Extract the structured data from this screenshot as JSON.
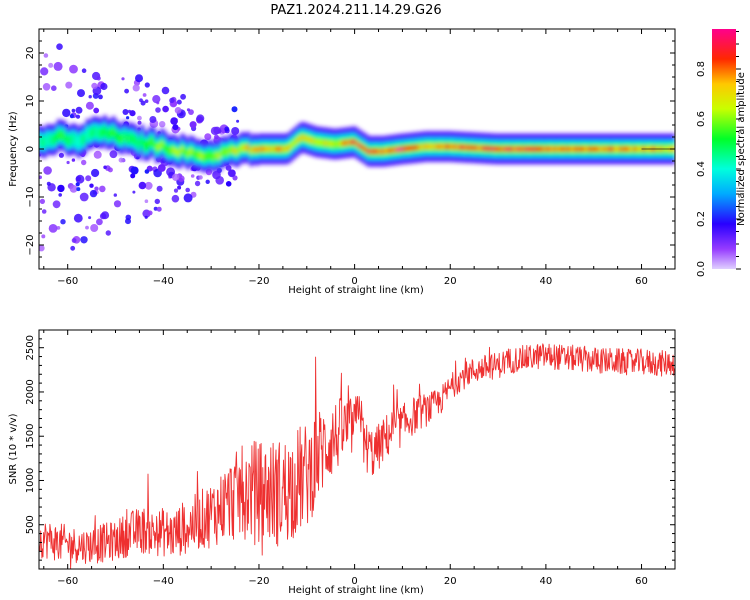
{
  "figure_title": "PAZ1.2024.211.14.29.G26",
  "chart_data": [
    {
      "type": "heatmap",
      "title": "",
      "xlabel": "Height of straight line (km)",
      "ylabel": "Frequency (Hz)",
      "xlim": [
        -66,
        67
      ],
      "ylim": [
        -25,
        25
      ],
      "xticks": [
        -60,
        -40,
        -20,
        0,
        20,
        40,
        60
      ],
      "yticks": [
        -20,
        -10,
        0,
        10,
        20
      ],
      "colorbar": {
        "label": "Normalized spectral amplitude",
        "range": [
          0.0,
          0.96
        ],
        "ticks": [
          0.0,
          0.2,
          0.4,
          0.6,
          0.8
        ],
        "colormap": "gist_rainbow (purple-blue-cyan-green-yellow-red-pink)"
      },
      "ridge": {
        "description": "frequency of maximum spectral amplitude versus height",
        "x": [
          -65,
          -62,
          -58,
          -54,
          -50,
          -46,
          -42,
          -38,
          -34,
          -30,
          -26,
          -22,
          -18,
          -14,
          -11,
          -8,
          -4,
          0,
          3,
          6,
          10,
          15,
          20,
          30,
          40,
          50,
          60,
          67
        ],
        "y": [
          1.5,
          2.5,
          1.5,
          3.5,
          3.0,
          1.5,
          1.0,
          0.0,
          -1.0,
          -1.5,
          -0.5,
          0.0,
          0.0,
          0.0,
          2.5,
          1.5,
          1.0,
          1.5,
          -0.5,
          -0.5,
          0.0,
          0.5,
          0.5,
          0.0,
          0.0,
          0.0,
          0.0,
          0.0
        ],
        "peak_amplitude": [
          0.45,
          0.55,
          0.45,
          0.5,
          0.55,
          0.5,
          0.6,
          0.65,
          0.65,
          0.6,
          0.7,
          0.75,
          0.8,
          0.75,
          0.7,
          0.75,
          0.7,
          0.9,
          0.95,
          0.85,
          0.95,
          0.8,
          0.85,
          0.9,
          0.85,
          0.85,
          0.8,
          0.75
        ]
      },
      "scatter_energy": {
        "description": "weak diffuse energy below about 40 km below-zero heights",
        "x_range": [
          -66,
          -24
        ],
        "y_range": [
          -24,
          24
        ],
        "amplitude": 0.15
      }
    },
    {
      "type": "line",
      "title": "",
      "xlabel": "Height of straight line (km)",
      "ylabel": "SNR (10 * v/v)",
      "xlim": [
        -66,
        67
      ],
      "ylim": [
        0,
        2700
      ],
      "xticks": [
        -60,
        -40,
        -20,
        0,
        20,
        40,
        60
      ],
      "yticks": [
        500,
        1000,
        1500,
        2000,
        2500
      ],
      "series": [
        {
          "color": "#ee3030",
          "x": [
            -66,
            -64,
            -62,
            -60,
            -58,
            -56,
            -54,
            -52,
            -50,
            -48,
            -46,
            -44,
            -42,
            -40,
            -38,
            -36,
            -34,
            -32,
            -30,
            -28,
            -26,
            -24,
            -22,
            -20,
            -18,
            -16,
            -14,
            -12,
            -10,
            -8,
            -6,
            -4,
            -2,
            0,
            1,
            2,
            4,
            6,
            8,
            10,
            12,
            14,
            16,
            18,
            20,
            22,
            24,
            26,
            28,
            30,
            32,
            34,
            36,
            38,
            40,
            42,
            44,
            46,
            48,
            50,
            52,
            54,
            56,
            58,
            60,
            62,
            64,
            66,
            67
          ],
          "y": [
            350,
            330,
            300,
            280,
            270,
            260,
            280,
            300,
            320,
            380,
            420,
            440,
            400,
            420,
            380,
            460,
            500,
            560,
            620,
            700,
            780,
            850,
            900,
            880,
            880,
            860,
            900,
            1000,
            1050,
            1250,
            1400,
            1500,
            1580,
            1600,
            1900,
            1400,
            1300,
            1450,
            1580,
            1620,
            1720,
            1780,
            1820,
            1900,
            2050,
            2150,
            2220,
            2260,
            2280,
            2300,
            2350,
            2370,
            2380,
            2400,
            2410,
            2400,
            2380,
            2380,
            2370,
            2360,
            2350,
            2350,
            2340,
            2330,
            2340,
            2330,
            2320,
            2330,
            2330
          ],
          "noise_amplitude": [
            220,
            220,
            220,
            220,
            200,
            200,
            220,
            220,
            230,
            250,
            260,
            270,
            260,
            280,
            280,
            300,
            320,
            340,
            380,
            420,
            480,
            520,
            560,
            580,
            600,
            620,
            620,
            620,
            600,
            560,
            480,
            420,
            380,
            320,
            200,
            300,
            280,
            260,
            260,
            240,
            220,
            200,
            180,
            160,
            150,
            150,
            150,
            150,
            150,
            150,
            150,
            150,
            150,
            150,
            150,
            150,
            150,
            150,
            150,
            150,
            150,
            150,
            150,
            150,
            150,
            150,
            150,
            150,
            150
          ]
        }
      ]
    }
  ]
}
